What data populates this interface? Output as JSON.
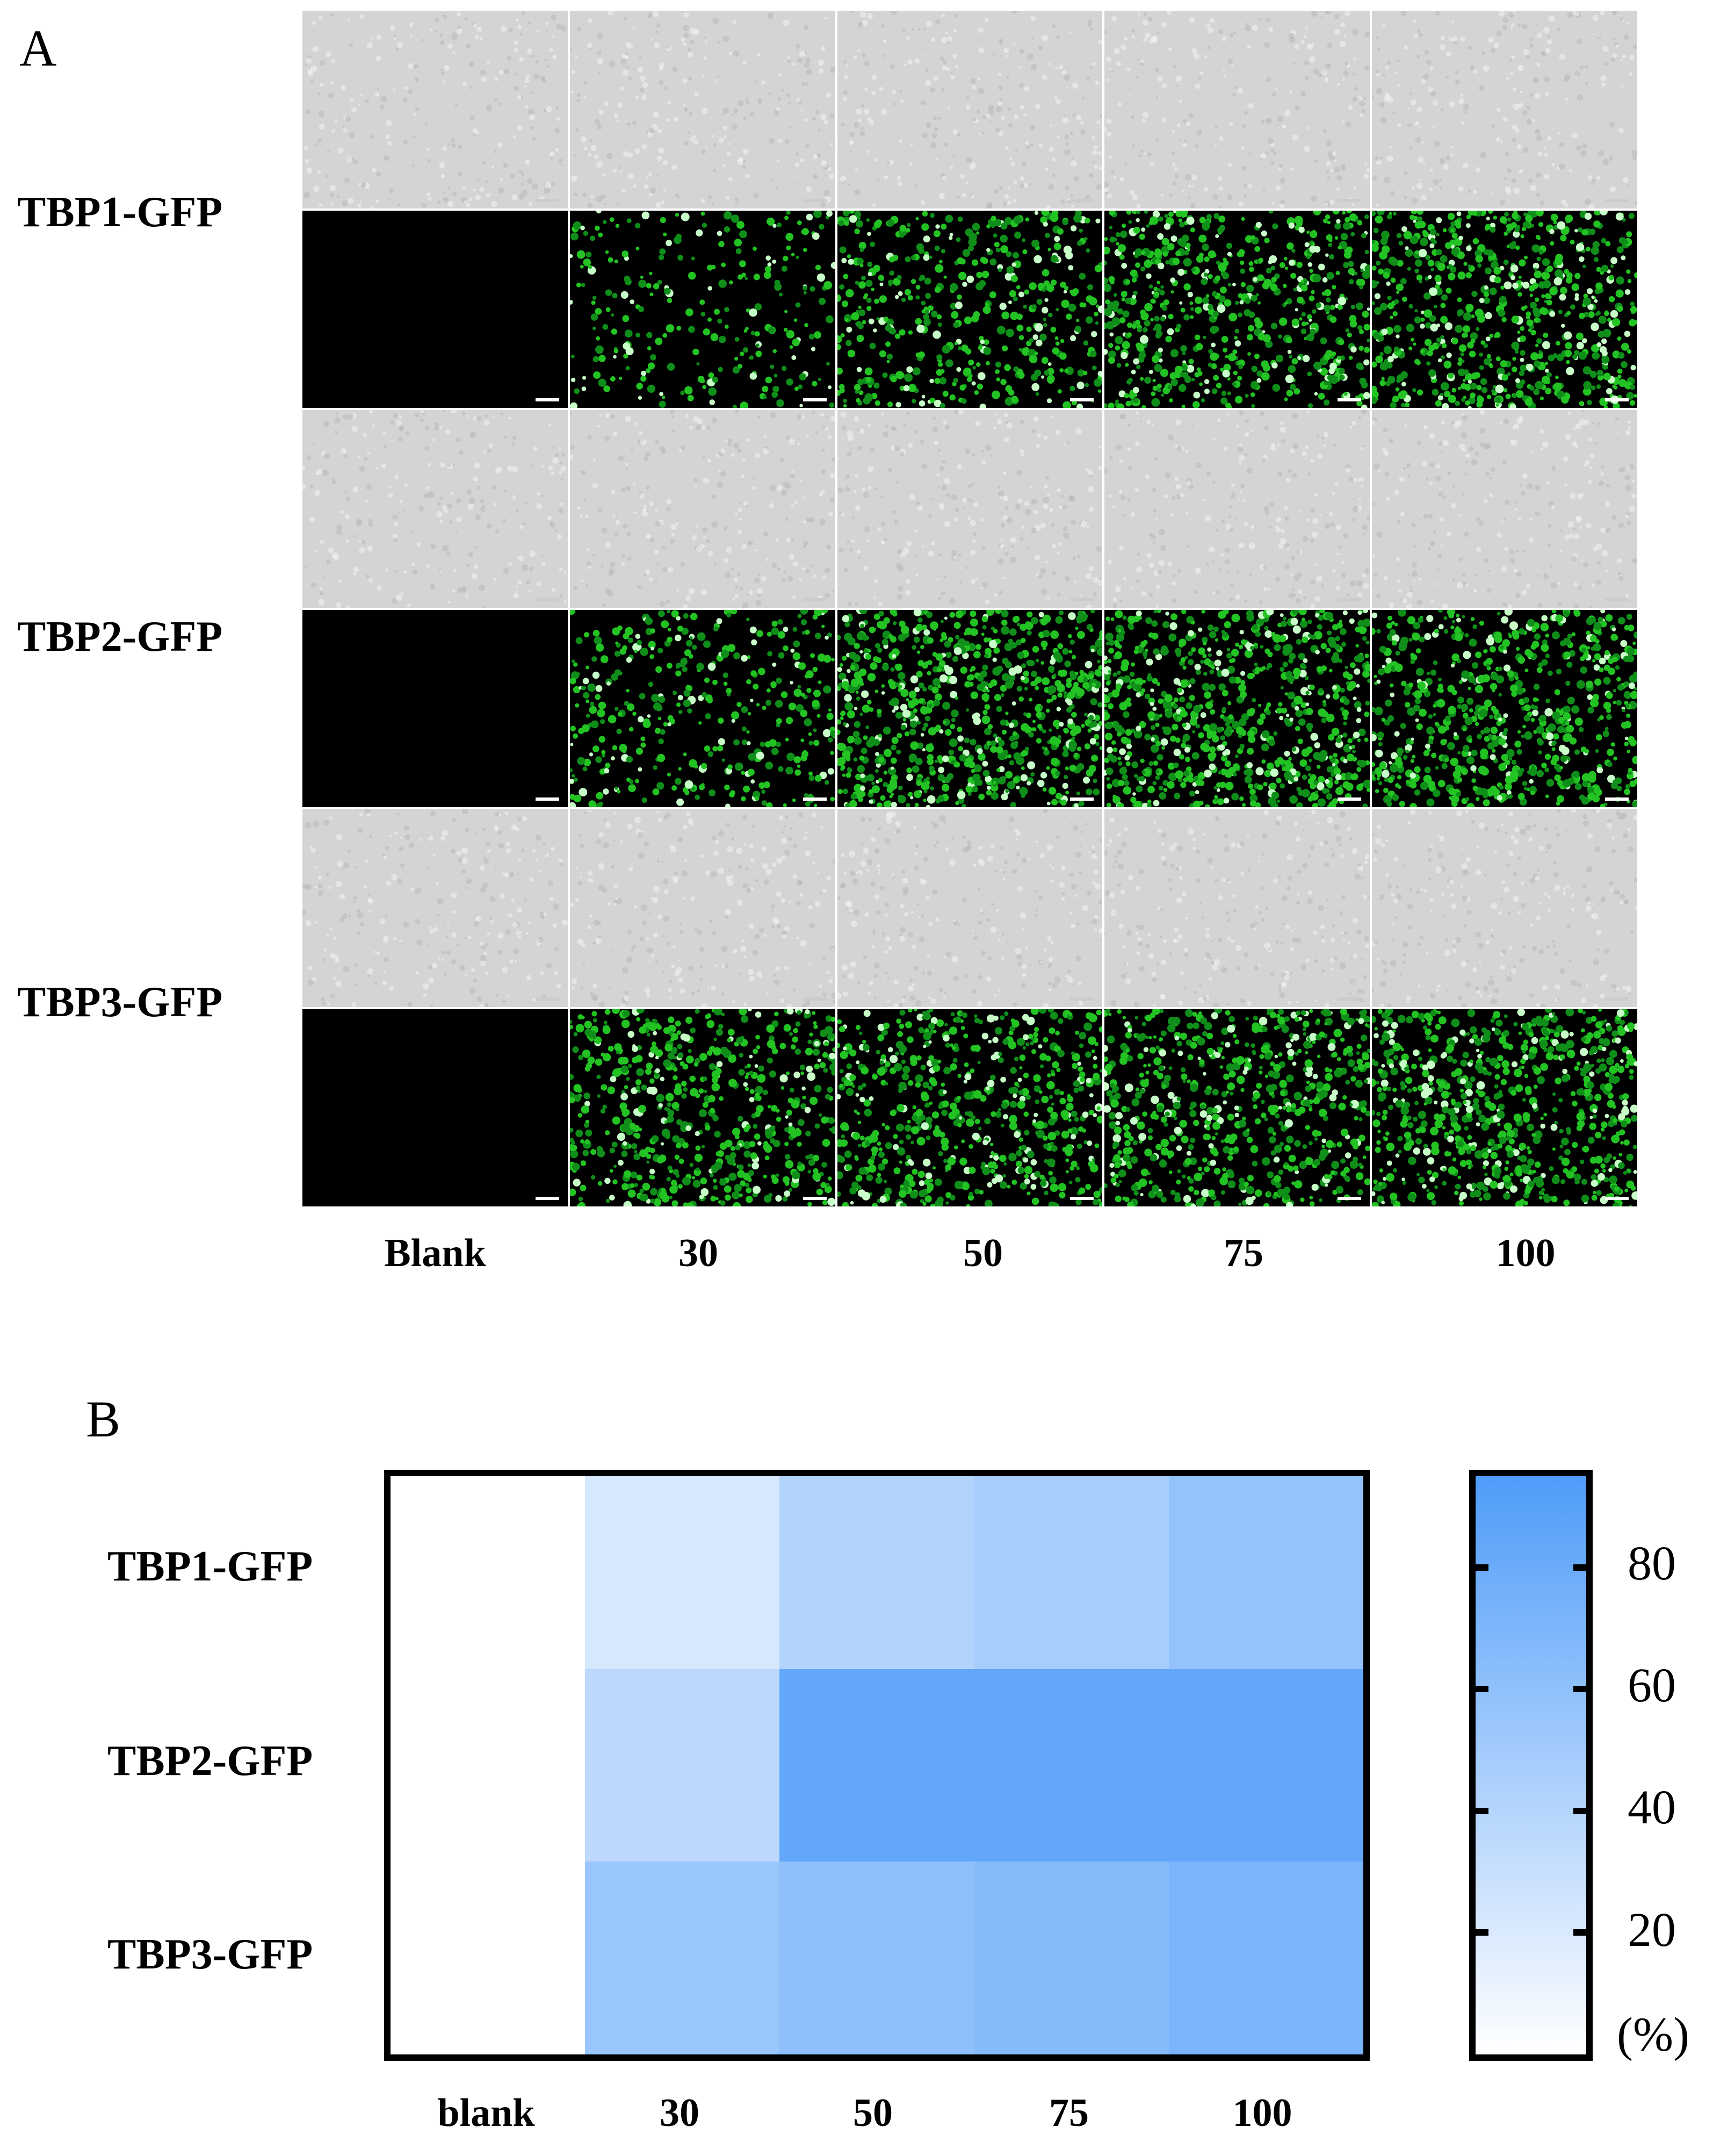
{
  "panel_a": {
    "letter": "A",
    "rows": [
      "TBP1-GFP",
      "TBP2-GFP",
      "TBP3-GFP"
    ],
    "columns": [
      "Blank",
      "30",
      "50",
      "75",
      "100"
    ],
    "image_types": [
      "bright-field micrograph",
      "GFP fluorescence micrograph"
    ],
    "colors": {
      "bright_field": "#d4d4d4",
      "gfp_background": "#000000",
      "gfp_cells": "#22c322"
    },
    "gfp_density": [
      [
        0.0,
        0.3,
        0.55,
        0.75,
        0.8
      ],
      [
        0.0,
        0.45,
        0.9,
        0.9,
        0.8
      ],
      [
        0.0,
        0.7,
        0.7,
        0.75,
        0.85
      ]
    ]
  },
  "panel_b": {
    "letter": "B",
    "chart_data": {
      "type": "heatmap",
      "rows": [
        "TBP1-GFP",
        "TBP2-GFP",
        "TBP3-GFP"
      ],
      "columns": [
        "blank",
        "30",
        "50",
        "75",
        "100"
      ],
      "values": [
        [
          0,
          22,
          42,
          48,
          58
        ],
        [
          0,
          36,
          84,
          84,
          84
        ],
        [
          0,
          55,
          60,
          66,
          72
        ]
      ],
      "colorbar": {
        "min": 0,
        "max": 95,
        "ticks": [
          20,
          40,
          60,
          80
        ],
        "unit": "(%)",
        "color_low": "#ffffff",
        "color_high": "#4f9cf9"
      }
    }
  }
}
